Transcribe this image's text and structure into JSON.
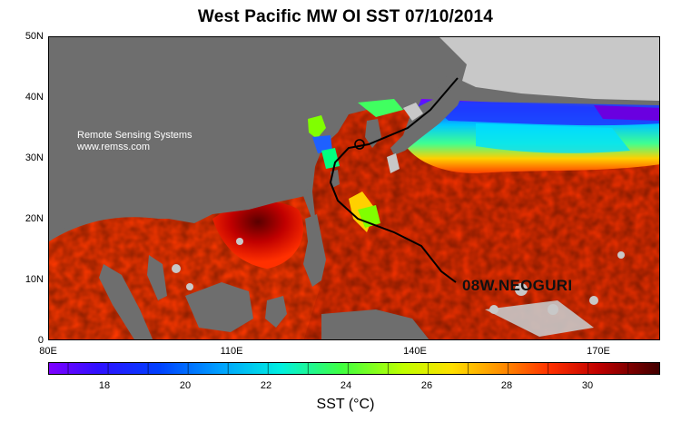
{
  "title": "West Pacific MW OI SST 07/10/2014",
  "credit": {
    "line1": "Remote Sensing Systems",
    "line2": "www.remss.com"
  },
  "storm_label": "08W.NEOGURI",
  "map": {
    "lat_labels": [
      "50N",
      "40N",
      "30N",
      "20N",
      "10N",
      "0"
    ],
    "lon_labels": [
      "80E",
      "110E",
      "140E",
      "170E"
    ],
    "lon_range": [
      80,
      180
    ],
    "lat_range": [
      0,
      50
    ],
    "land_color": "#6e6e6e",
    "ice_or_missing_color": "#c8c8c8",
    "track_color": "#000000"
  },
  "colorbar": {
    "title": "SST (°C)",
    "labels": [
      "18",
      "20",
      "22",
      "24",
      "26",
      "28",
      "30"
    ],
    "range": [
      16.5,
      31.8
    ],
    "colors": [
      "#8000ff",
      "#2020ff",
      "#0080ff",
      "#00d0ff",
      "#00ff80",
      "#80ff00",
      "#ffff00",
      "#ffa000",
      "#ff5000",
      "#e00000",
      "#a00000",
      "#400000"
    ]
  }
}
